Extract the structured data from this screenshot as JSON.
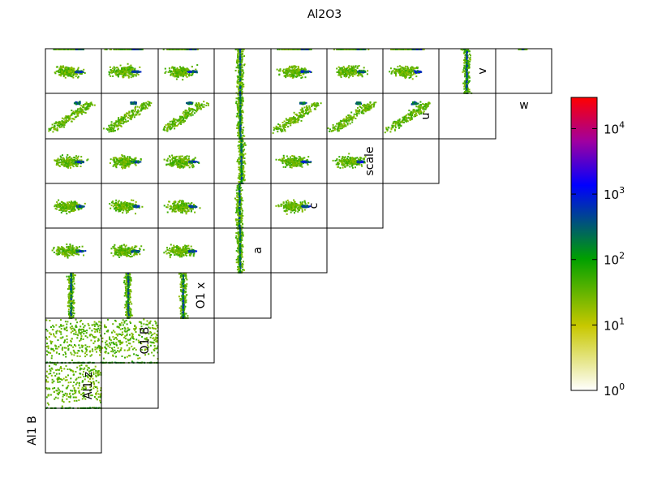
{
  "chart_data": {
    "type": "heatmap",
    "subtype": "pairwise-2d-histogram-triangle",
    "title": "Al2O3",
    "parameters": [
      "Al1 B",
      "Al1 z",
      "O1 B",
      "O1 x",
      "a",
      "c",
      "scale",
      "u",
      "v",
      "w"
    ],
    "colorbar": {
      "scale": "log",
      "range": [
        1,
        30000
      ],
      "ticks": [
        {
          "base": "10",
          "exp": "0"
        },
        {
          "base": "10",
          "exp": "1"
        },
        {
          "base": "10",
          "exp": "2"
        },
        {
          "base": "10",
          "exp": "3"
        },
        {
          "base": "10",
          "exp": "4"
        }
      ],
      "colormap": [
        "#ffffff",
        "#c8c800",
        "#00a000",
        "#0000ff",
        "#a000a0",
        "#ff0000"
      ]
    },
    "grid": false,
    "axes_ticks_shown": false
  }
}
